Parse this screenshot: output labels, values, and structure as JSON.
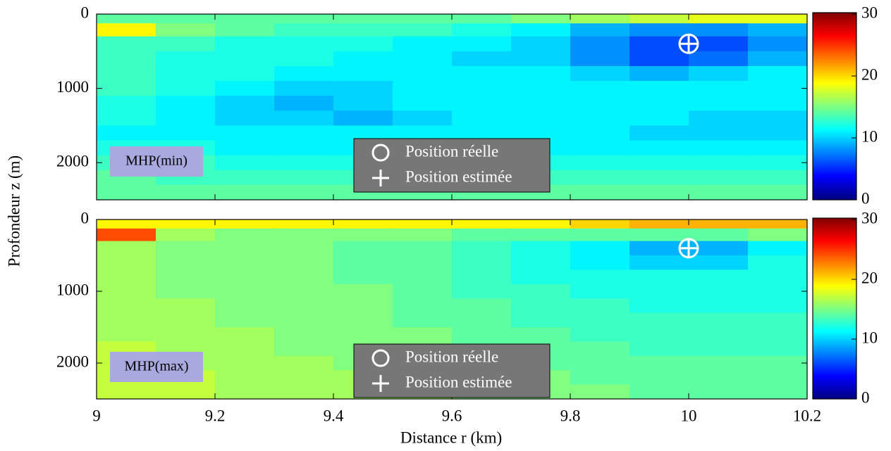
{
  "xlabel": "Distance r (km)",
  "ylabel": "Profondeur z (m)",
  "chart_data": [
    {
      "type": "heatmap",
      "annotation": "MHP(min)",
      "x": [
        9.05,
        9.15,
        9.25,
        9.35,
        9.45,
        9.55,
        9.65,
        9.75,
        9.85,
        9.95,
        10.05,
        10.15
      ],
      "y": [
        50,
        200,
        400,
        600,
        800,
        1000,
        1200,
        1400,
        1600,
        1800,
        2000,
        2200,
        2400
      ],
      "z": [
        [
          14,
          14,
          14,
          14,
          14,
          14,
          14,
          15,
          16,
          17,
          18,
          18
        ],
        [
          19,
          15,
          14,
          13,
          13,
          13,
          12,
          11,
          9,
          8,
          8,
          9
        ],
        [
          13,
          13,
          12,
          12,
          12,
          11,
          11,
          10,
          8,
          6,
          6,
          8
        ],
        [
          13,
          12,
          12,
          12,
          11,
          11,
          10,
          10,
          8,
          6,
          7,
          9
        ],
        [
          13,
          12,
          12,
          11,
          11,
          11,
          11,
          11,
          10,
          9,
          10,
          11
        ],
        [
          13,
          12,
          11,
          10,
          10,
          11,
          11,
          11,
          11,
          11,
          11,
          11
        ],
        [
          12,
          11,
          10,
          9,
          10,
          11,
          11,
          11,
          11,
          11,
          11,
          11
        ],
        [
          12,
          11,
          10,
          10,
          9,
          10,
          11,
          11,
          11,
          11,
          10,
          10
        ],
        [
          11,
          11,
          11,
          11,
          11,
          11,
          11,
          11,
          11,
          10,
          10,
          10
        ],
        [
          12,
          12,
          11,
          11,
          11,
          11,
          11,
          11,
          11,
          11,
          11,
          11
        ],
        [
          13,
          13,
          12,
          12,
          12,
          12,
          12,
          12,
          12,
          12,
          12,
          12
        ],
        [
          14,
          13,
          13,
          13,
          13,
          13,
          13,
          13,
          13,
          13,
          13,
          13
        ],
        [
          14,
          14,
          14,
          14,
          14,
          14,
          14,
          14,
          14,
          14,
          14,
          14
        ]
      ],
      "xlim": [
        9,
        10.2
      ],
      "xticks": [
        9,
        9.2,
        9.4,
        9.6,
        9.8,
        10,
        10.2
      ],
      "ylim": [
        0,
        2500
      ],
      "yticks": [
        0,
        1000,
        2000
      ],
      "clim": [
        0,
        30
      ],
      "cticks": [
        0,
        10,
        20,
        30
      ],
      "true_position": {
        "x": 10,
        "y": 400
      },
      "estimated_position": {
        "x": 10,
        "y": 400
      },
      "legend": [
        "Position réelle",
        "Position estimée"
      ]
    },
    {
      "type": "heatmap",
      "annotation": "MHP(max)",
      "x": [
        9.05,
        9.15,
        9.25,
        9.35,
        9.45,
        9.55,
        9.65,
        9.75,
        9.85,
        9.95,
        10.05,
        10.15
      ],
      "y": [
        50,
        200,
        400,
        600,
        800,
        1000,
        1200,
        1400,
        1600,
        1800,
        2000,
        2200,
        2400
      ],
      "z": [
        [
          19,
          19,
          19,
          19,
          19,
          19,
          19,
          19,
          20,
          21,
          21,
          21
        ],
        [
          24,
          16,
          15,
          15,
          15,
          15,
          14,
          14,
          14,
          14,
          14,
          15
        ],
        [
          16,
          15,
          15,
          15,
          14,
          14,
          13,
          12,
          11,
          9,
          9,
          11
        ],
        [
          16,
          15,
          15,
          15,
          14,
          14,
          13,
          12,
          11,
          10,
          10,
          12
        ],
        [
          16,
          15,
          15,
          15,
          14,
          14,
          13,
          12,
          12,
          12,
          12,
          12
        ],
        [
          16,
          15,
          15,
          15,
          15,
          14,
          13,
          13,
          12,
          12,
          12,
          12
        ],
        [
          16,
          16,
          15,
          15,
          15,
          14,
          14,
          13,
          13,
          12,
          12,
          12
        ],
        [
          16,
          16,
          15,
          15,
          15,
          14,
          14,
          13,
          13,
          13,
          13,
          13
        ],
        [
          16,
          16,
          16,
          15,
          15,
          15,
          14,
          14,
          13,
          13,
          13,
          13
        ],
        [
          17,
          16,
          16,
          15,
          15,
          15,
          14,
          14,
          14,
          13,
          13,
          13
        ],
        [
          17,
          16,
          16,
          16,
          15,
          15,
          15,
          14,
          14,
          14,
          14,
          14
        ],
        [
          17,
          17,
          16,
          16,
          16,
          15,
          15,
          15,
          14,
          14,
          14,
          14
        ],
        [
          17,
          17,
          16,
          16,
          16,
          16,
          15,
          15,
          15,
          14,
          14,
          14
        ]
      ],
      "xlim": [
        9,
        10.2
      ],
      "xticks": [
        9,
        9.2,
        9.4,
        9.6,
        9.8,
        10,
        10.2
      ],
      "ylim": [
        0,
        2500
      ],
      "yticks": [
        0,
        1000,
        2000
      ],
      "clim": [
        0,
        30
      ],
      "cticks": [
        0,
        10,
        20,
        30
      ],
      "true_position": {
        "x": 10,
        "y": 400
      },
      "estimated_position": {
        "x": 10,
        "y": 400
      },
      "legend": [
        "Position réelle",
        "Position estimée"
      ]
    }
  ]
}
